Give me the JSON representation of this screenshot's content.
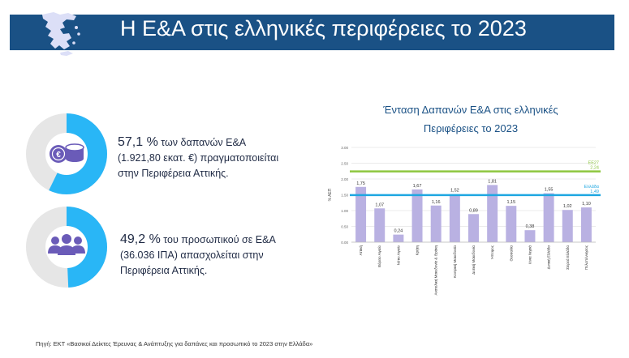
{
  "header": {
    "title": "Η Ε&Α στις ελληνικές περιφέρειες το 2023",
    "map_color": "#dcdff7",
    "bg_color": "#1a5185"
  },
  "stats": [
    {
      "icon": "coins-euro-icon",
      "percent_value": 57.1,
      "percent_label": "57,1 %",
      "line1": " των δαπανών Ε&Α",
      "line2": "(1.921,80 εκατ. €) πραγματοποιείται",
      "line3": "στην Περιφέρεια Αττικής."
    },
    {
      "icon": "people-group-icon",
      "percent_value": 49.2,
      "percent_label": "49,2 %",
      "line1": " του προσωπικού σε Ε&Α",
      "line2": "(36.036 ΙΠΑ) απασχολείται στην",
      "line3": "Περιφέρεια Αττικής."
    }
  ],
  "colors": {
    "donut_fill": "#29b6f6",
    "donut_track": "#e6e6e6",
    "icon": "#6a5bb8",
    "bar": "#b9b1e2",
    "eu_line": "#8dc63f",
    "el_line": "#1fa7e1",
    "title": "#1a5185"
  },
  "chart_data": {
    "type": "bar",
    "title_line1": "Ένταση Δαπανών  Ε&Α στις ελληνικές",
    "title_line2": "Περιφέρειες το 2023",
    "ylabel": "% ΑΕΠ",
    "ylim": [
      0,
      3
    ],
    "yticks": [
      "0.00",
      "0.50",
      "1.00",
      "1.50",
      "2.00",
      "2.50",
      "3.00"
    ],
    "categories": [
      "Αττική",
      "Βόρειο Αιγαίο",
      "Νότιο Αιγαίο",
      "Κρήτη",
      "Ανατολική Μακεδονία & Θράκη",
      "Κεντρική Μακεδονία",
      "Δυτική Μακεδονία",
      "Ήπειρος",
      "Θεσσαλία",
      "Ιόνια Νησιά",
      "Δυτική Ελλάδα",
      "Στερεά Ελλάδα",
      "Πελοπόννησος"
    ],
    "values": [
      1.75,
      1.07,
      0.24,
      1.67,
      1.16,
      1.52,
      0.89,
      1.81,
      1.15,
      0.38,
      1.55,
      1.02,
      1.1
    ],
    "value_labels": [
      "1,75",
      "1,07",
      "0,24",
      "1,67",
      "1,16",
      "1,52",
      "0,89",
      "1,81",
      "1,15",
      "0,38",
      "1,55",
      "1,02",
      "1,10"
    ],
    "reference_lines": [
      {
        "name": "ΕΕ27",
        "value": 2.24,
        "label": "2,24"
      },
      {
        "name": "Ελλάδα",
        "value": 1.49,
        "label": "1,49"
      }
    ]
  },
  "source": "Πηγή: ΕΚΤ «Βασικοί Δείκτες Έρευνας & Ανάπτυξης για δαπάνες και προσωπικό το 2023 στην Ελλάδα»"
}
